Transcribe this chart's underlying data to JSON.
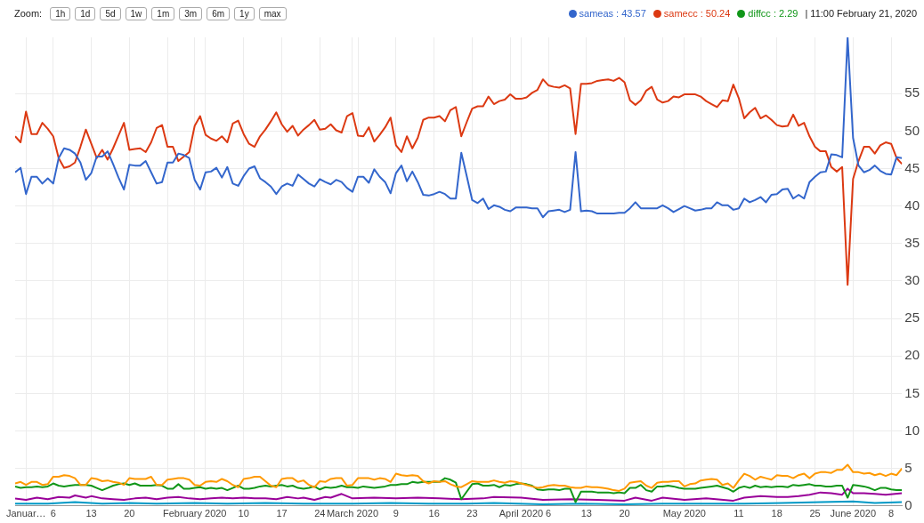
{
  "chart_data": {
    "type": "line",
    "annotations": [
      "Zoom:",
      "1h",
      "1d",
      "5d",
      "1w",
      "1m",
      "3m",
      "6m",
      "1y",
      "max",
      "| 11:00 February 21, 2020"
    ],
    "x": [
      "2019-12-30",
      "2019-12-31",
      "2020-01-01",
      "2020-01-02",
      "2020-01-03",
      "2020-01-04",
      "2020-01-05",
      "2020-01-06",
      "2020-01-07",
      "2020-01-08",
      "2020-01-09",
      "2020-01-10",
      "2020-01-11",
      "2020-01-12",
      "2020-01-13",
      "2020-01-14",
      "2020-01-15",
      "2020-01-16",
      "2020-01-17",
      "2020-01-18",
      "2020-01-19",
      "2020-01-20",
      "2020-01-21",
      "2020-01-22",
      "2020-01-23",
      "2020-01-24",
      "2020-01-25",
      "2020-01-26",
      "2020-01-27",
      "2020-01-28",
      "2020-01-29",
      "2020-01-30",
      "2020-01-31",
      "2020-02-01",
      "2020-02-02",
      "2020-02-03",
      "2020-02-04",
      "2020-02-05",
      "2020-02-06",
      "2020-02-07",
      "2020-02-08",
      "2020-02-09",
      "2020-02-10",
      "2020-02-11",
      "2020-02-12",
      "2020-02-13",
      "2020-02-14",
      "2020-02-15",
      "2020-02-16",
      "2020-02-17",
      "2020-02-18",
      "2020-02-19",
      "2020-02-20",
      "2020-02-21",
      "2020-02-22",
      "2020-02-23",
      "2020-02-24",
      "2020-02-25",
      "2020-02-26",
      "2020-02-27",
      "2020-02-28",
      "2020-02-29",
      "2020-03-01",
      "2020-03-02",
      "2020-03-03",
      "2020-03-04",
      "2020-03-05",
      "2020-03-06",
      "2020-03-07",
      "2020-03-08",
      "2020-03-09",
      "2020-03-10",
      "2020-03-11",
      "2020-03-12",
      "2020-03-13",
      "2020-03-14",
      "2020-03-15",
      "2020-03-16",
      "2020-03-17",
      "2020-03-18",
      "2020-03-19",
      "2020-03-20",
      "2020-03-21",
      "2020-03-22",
      "2020-03-23",
      "2020-03-24",
      "2020-03-25",
      "2020-03-26",
      "2020-03-27",
      "2020-03-28",
      "2020-03-29",
      "2020-03-30",
      "2020-03-31",
      "2020-04-01",
      "2020-04-02",
      "2020-04-03",
      "2020-04-04",
      "2020-04-05",
      "2020-04-06",
      "2020-04-07",
      "2020-04-08",
      "2020-04-09",
      "2020-04-10",
      "2020-04-11",
      "2020-04-12",
      "2020-04-13",
      "2020-04-14",
      "2020-04-15",
      "2020-04-16",
      "2020-04-17",
      "2020-04-18",
      "2020-04-19",
      "2020-04-20",
      "2020-04-21",
      "2020-04-22",
      "2020-04-23",
      "2020-04-24",
      "2020-04-25",
      "2020-04-26",
      "2020-04-27",
      "2020-04-28",
      "2020-04-29",
      "2020-04-30",
      "2020-05-01",
      "2020-05-02",
      "2020-05-03",
      "2020-05-04",
      "2020-05-05",
      "2020-05-06",
      "2020-05-07",
      "2020-05-08",
      "2020-05-09",
      "2020-05-10",
      "2020-05-11",
      "2020-05-12",
      "2020-05-13",
      "2020-05-14",
      "2020-05-15",
      "2020-05-16",
      "2020-05-17",
      "2020-05-18",
      "2020-05-19",
      "2020-05-20",
      "2020-05-21",
      "2020-05-22",
      "2020-05-23",
      "2020-05-24",
      "2020-05-25",
      "2020-05-26",
      "2020-05-27",
      "2020-05-28",
      "2020-05-29",
      "2020-05-30",
      "2020-05-31",
      "2020-06-01",
      "2020-06-02",
      "2020-06-03",
      "2020-06-04",
      "2020-06-05",
      "2020-06-06",
      "2020-06-07",
      "2020-06-08",
      "2020-06-09",
      "2020-06-10"
    ],
    "series": [
      {
        "name": "sameas : 43.57",
        "color": "#3366cc",
        "values": [
          44.5,
          45.1,
          41.6,
          43.9,
          43.9,
          43.0,
          43.7,
          43.0,
          46.4,
          47.7,
          47.5,
          47.0,
          45.8,
          43.5,
          44.4,
          46.6,
          46.6,
          47.3,
          45.6,
          43.8,
          42.2,
          45.5,
          45.4,
          45.4,
          46.0,
          44.5,
          43.0,
          43.2,
          45.8,
          45.8,
          47.0,
          46.8,
          46.4,
          43.5,
          42.2,
          44.5,
          44.6,
          45.1,
          43.8,
          45.2,
          43.0,
          42.7,
          44.0,
          45.0,
          45.3,
          43.7,
          43.2,
          42.6,
          41.6,
          42.6,
          43.0,
          42.7,
          44.2,
          43.6,
          43.0,
          42.6,
          43.6,
          43.2,
          42.9,
          43.5,
          43.2,
          42.4,
          41.9,
          43.9,
          43.9,
          43.1,
          44.9,
          43.9,
          43.2,
          41.7,
          44.4,
          45.4,
          43.3,
          44.6,
          43.2,
          41.5,
          41.4,
          41.6,
          41.9,
          41.6,
          41.0,
          41.0,
          47.1,
          44.0,
          40.8,
          40.4,
          41.0,
          39.6,
          40.1,
          39.9,
          39.5,
          39.3,
          39.8,
          39.8,
          39.8,
          39.7,
          39.7,
          38.5,
          39.3,
          39.4,
          39.5,
          39.2,
          39.5,
          47.2,
          39.3,
          39.4,
          39.3,
          39.0,
          39.0,
          39.0,
          39.0,
          39.1,
          39.1,
          39.7,
          40.5,
          39.7,
          39.7,
          39.7,
          39.7,
          40.1,
          39.7,
          39.2,
          39.6,
          40.0,
          39.7,
          39.4,
          39.5,
          39.7,
          39.7,
          40.5,
          40.1,
          40.1,
          39.5,
          39.7,
          41.0,
          40.5,
          40.8,
          41.2,
          40.5,
          41.5,
          41.6,
          42.2,
          42.3,
          41.0,
          41.5,
          41.0,
          43.2,
          43.9,
          44.5,
          44.6,
          46.9,
          46.8,
          46.5,
          62.5,
          49.1,
          45.4,
          44.5,
          44.8,
          45.4,
          44.7,
          44.3,
          44.2,
          46.5,
          46.4
        ]
      },
      {
        "name": "samecc : 50.24",
        "color": "#dc3912",
        "values": [
          49.3,
          48.5,
          52.6,
          49.6,
          49.6,
          51.1,
          50.3,
          49.3,
          46.4,
          45.1,
          45.3,
          45.8,
          47.9,
          50.2,
          48.3,
          46.4,
          47.5,
          46.2,
          47.7,
          49.4,
          51.1,
          47.5,
          47.6,
          47.7,
          47.2,
          48.5,
          50.4,
          50.8,
          47.9,
          47.9,
          46.0,
          46.6,
          47.2,
          50.7,
          52.0,
          49.5,
          49.0,
          48.7,
          49.3,
          48.5,
          51.0,
          51.4,
          49.6,
          48.3,
          47.9,
          49.3,
          50.2,
          51.3,
          52.5,
          50.9,
          49.9,
          50.7,
          49.4,
          50.2,
          50.8,
          51.5,
          50.2,
          50.3,
          50.9,
          50.1,
          49.8,
          52.0,
          52.4,
          49.4,
          49.3,
          50.5,
          48.6,
          49.5,
          50.5,
          51.8,
          48.1,
          47.2,
          49.3,
          47.7,
          49.1,
          51.5,
          51.8,
          51.8,
          52.0,
          51.3,
          52.8,
          53.2,
          49.3,
          51.2,
          53.0,
          53.3,
          53.3,
          54.6,
          53.6,
          54.0,
          54.2,
          54.9,
          54.3,
          54.3,
          54.5,
          55.1,
          55.5,
          56.9,
          56.1,
          55.9,
          55.8,
          56.1,
          55.7,
          49.6,
          56.3,
          56.3,
          56.4,
          56.7,
          56.8,
          56.9,
          56.7,
          57.1,
          56.5,
          54.1,
          53.5,
          54.1,
          55.4,
          55.9,
          54.2,
          53.8,
          54.0,
          54.6,
          54.5,
          54.9,
          54.9,
          54.9,
          54.6,
          54.0,
          53.6,
          53.2,
          54.1,
          54.0,
          56.2,
          54.4,
          51.7,
          52.5,
          53.1,
          51.7,
          52.1,
          51.5,
          50.8,
          50.6,
          50.7,
          52.2,
          50.7,
          51.1,
          49.3,
          47.9,
          47.3,
          47.3,
          45.2,
          44.6,
          45.2,
          29.5,
          43.6,
          46.0,
          47.9,
          47.9,
          47.0,
          48.1,
          48.5,
          48.3,
          46.4,
          45.6
        ]
      },
      {
        "color": "#ff9900",
        "values": [
          3.0,
          3.2,
          2.8,
          3.2,
          3.2,
          2.8,
          2.9,
          3.9,
          3.9,
          4.1,
          4.0,
          3.7,
          2.8,
          2.8,
          3.7,
          3.6,
          3.3,
          3.4,
          3.2,
          3.1,
          2.8,
          3.7,
          3.6,
          3.6,
          3.6,
          3.9,
          2.8,
          2.8,
          3.5,
          3.6,
          3.7,
          3.7,
          3.5,
          2.8,
          2.7,
          3.2,
          3.3,
          3.2,
          3.6,
          3.3,
          2.8,
          2.5,
          3.6,
          3.7,
          3.9,
          3.9,
          3.3,
          2.7,
          2.5,
          3.6,
          3.7,
          3.7,
          3.2,
          3.4,
          2.8,
          2.5,
          3.3,
          3.2,
          3.6,
          3.7,
          3.7,
          2.7,
          2.8,
          3.7,
          3.7,
          3.7,
          3.5,
          3.7,
          3.6,
          3.2,
          4.3,
          4.1,
          4.0,
          4.1,
          4.0,
          3.3,
          3.0,
          3.3,
          3.2,
          3.3,
          2.9,
          2.6,
          2.5,
          2.9,
          3.3,
          3.2,
          3.2,
          3.2,
          3.4,
          3.2,
          3.1,
          3.3,
          3.2,
          3.0,
          2.8,
          2.6,
          2.4,
          2.5,
          2.7,
          2.8,
          2.7,
          2.7,
          2.5,
          2.4,
          2.4,
          2.6,
          2.5,
          2.5,
          2.4,
          2.3,
          2.1,
          2.0,
          2.3,
          3.1,
          3.2,
          3.3,
          2.7,
          2.4,
          3.1,
          3.2,
          3.2,
          3.3,
          3.3,
          2.6,
          2.9,
          3.0,
          3.4,
          3.5,
          3.6,
          3.5,
          2.8,
          3.0,
          2.4,
          3.4,
          4.3,
          4.0,
          3.5,
          3.9,
          3.7,
          3.5,
          4.1,
          4.0,
          4.0,
          3.7,
          4.1,
          4.3,
          3.7,
          4.3,
          4.5,
          4.5,
          4.4,
          4.8,
          4.8,
          5.5,
          4.5,
          4.5,
          4.3,
          4.4,
          4.1,
          4.3,
          4.0,
          4.3,
          4.1,
          5.0
        ]
      },
      {
        "name": "diffcc : 2.29",
        "color": "#109618",
        "values": [
          2.6,
          2.4,
          2.5,
          2.5,
          2.6,
          2.5,
          2.6,
          3.0,
          2.7,
          2.6,
          2.7,
          2.8,
          2.8,
          2.8,
          2.7,
          2.4,
          2.1,
          2.4,
          2.7,
          2.9,
          3.0,
          2.8,
          3.0,
          2.7,
          2.7,
          2.7,
          2.8,
          2.7,
          2.3,
          2.3,
          2.9,
          2.3,
          2.3,
          2.4,
          2.5,
          2.3,
          2.4,
          2.3,
          2.4,
          2.1,
          2.4,
          2.7,
          2.3,
          2.3,
          2.4,
          2.6,
          2.7,
          2.6,
          2.7,
          2.8,
          2.6,
          2.7,
          2.4,
          2.3,
          2.4,
          2.6,
          2.2,
          2.5,
          2.4,
          2.5,
          2.7,
          2.5,
          2.5,
          2.4,
          2.6,
          2.5,
          2.4,
          2.5,
          2.6,
          2.8,
          2.8,
          2.9,
          2.9,
          3.2,
          3.1,
          3.2,
          3.2,
          3.2,
          3.2,
          3.7,
          3.5,
          3.1,
          0.9,
          1.9,
          2.9,
          3.0,
          2.7,
          2.7,
          2.8,
          2.5,
          2.8,
          2.7,
          2.9,
          3.0,
          2.9,
          2.7,
          2.2,
          2.1,
          2.2,
          2.2,
          2.1,
          2.3,
          2.3,
          0.5,
          1.9,
          1.9,
          1.9,
          1.8,
          1.8,
          1.8,
          1.7,
          1.8,
          1.7,
          2.4,
          2.4,
          2.8,
          2.1,
          1.9,
          2.6,
          2.6,
          2.7,
          2.6,
          2.4,
          2.3,
          2.3,
          2.3,
          2.4,
          2.5,
          2.6,
          2.7,
          2.5,
          2.3,
          1.9,
          2.4,
          2.6,
          2.4,
          2.7,
          2.5,
          2.6,
          2.5,
          2.6,
          2.6,
          2.5,
          2.8,
          2.7,
          2.8,
          2.9,
          2.7,
          2.7,
          2.6,
          2.6,
          2.7,
          2.7,
          1.1,
          2.8,
          2.7,
          2.6,
          2.4,
          2.1,
          2.4,
          2.4,
          2.2,
          2.1,
          2.1
        ]
      },
      {
        "color": "#990099",
        "x": [
          "2019-12-30",
          "2020-01-01",
          "2020-01-03",
          "2020-01-05",
          "2020-01-07",
          "2020-01-09",
          "2020-01-10",
          "2020-01-12",
          "2020-01-13",
          "2020-01-15",
          "2020-01-17",
          "2020-01-19",
          "2020-01-21",
          "2020-01-23",
          "2020-01-25",
          "2020-01-27",
          "2020-01-29",
          "2020-01-31",
          "2020-02-02",
          "2020-02-04",
          "2020-02-06",
          "2020-02-08",
          "2020-02-10",
          "2020-02-12",
          "2020-02-14",
          "2020-02-16",
          "2020-02-18",
          "2020-02-20",
          "2020-02-21",
          "2020-02-23",
          "2020-02-25",
          "2020-02-26",
          "2020-02-28",
          "2020-03-01",
          "2020-03-05",
          "2020-03-09",
          "2020-03-13",
          "2020-03-17",
          "2020-03-21",
          "2020-03-25",
          "2020-03-27",
          "2020-04-01",
          "2020-04-05",
          "2020-04-10",
          "2020-04-15",
          "2020-04-20",
          "2020-04-22",
          "2020-04-25",
          "2020-04-27",
          "2020-05-01",
          "2020-05-05",
          "2020-05-10",
          "2020-05-12",
          "2020-05-15",
          "2020-05-18",
          "2020-05-20",
          "2020-05-22",
          "2020-05-24",
          "2020-05-26",
          "2020-05-28",
          "2020-05-30",
          "2020-05-31",
          "2020-06-01",
          "2020-06-03",
          "2020-06-05",
          "2020-06-07",
          "2020-06-10"
        ],
        "values": [
          1.0,
          0.8,
          1.1,
          0.9,
          1.2,
          1.1,
          1.4,
          1.1,
          1.3,
          1.0,
          0.9,
          0.8,
          1.0,
          1.1,
          0.9,
          1.1,
          1.2,
          1.0,
          0.9,
          1.0,
          1.1,
          1.0,
          1.1,
          1.0,
          1.0,
          0.9,
          1.2,
          1.0,
          1.1,
          0.8,
          1.2,
          1.1,
          1.6,
          1.0,
          1.1,
          1.0,
          1.1,
          1.0,
          0.9,
          1.0,
          1.2,
          1.1,
          0.8,
          0.9,
          0.8,
          0.7,
          1.1,
          0.7,
          1.1,
          0.8,
          1.0,
          0.7,
          1.1,
          1.3,
          1.2,
          1.2,
          1.3,
          1.5,
          1.8,
          1.7,
          1.5,
          2.3,
          1.7,
          1.7,
          1.6,
          1.5,
          1.7
        ]
      },
      {
        "color": "#0099c6",
        "x": [
          "2019-12-30",
          "2020-01-05",
          "2020-01-10",
          "2020-01-15",
          "2020-01-20",
          "2020-01-25",
          "2020-02-01",
          "2020-02-07",
          "2020-02-14",
          "2020-02-21",
          "2020-03-01",
          "2020-03-08",
          "2020-03-15",
          "2020-03-22",
          "2020-03-27",
          "2020-04-05",
          "2020-04-12",
          "2020-04-20",
          "2020-04-27",
          "2020-05-05",
          "2020-05-12",
          "2020-05-19",
          "2020-05-26",
          "2020-06-01",
          "2020-06-05",
          "2020-06-10"
        ],
        "values": [
          0.3,
          0.3,
          0.5,
          0.3,
          0.4,
          0.3,
          0.4,
          0.3,
          0.4,
          0.3,
          0.3,
          0.4,
          0.3,
          0.3,
          0.4,
          0.2,
          0.3,
          0.2,
          0.3,
          0.3,
          0.3,
          0.4,
          0.5,
          0.6,
          0.4,
          0.5
        ]
      }
    ],
    "xlim": [
      "2019-12-30",
      "2020-06-10"
    ],
    "xticks": [
      {
        "value": "2020-01-01",
        "label": "Januar…"
      },
      {
        "value": "2020-01-06",
        "label": "6"
      },
      {
        "value": "2020-01-13",
        "label": "13"
      },
      {
        "value": "2020-01-20",
        "label": "20"
      },
      {
        "value": "2020-01-27",
        "label": null
      },
      {
        "value": "2020-02-01",
        "label": "February 2020"
      },
      {
        "value": "2020-02-03",
        "label": null
      },
      {
        "value": "2020-02-10",
        "label": "10"
      },
      {
        "value": "2020-02-17",
        "label": "17"
      },
      {
        "value": "2020-02-24",
        "label": "24"
      },
      {
        "value": "2020-03-01",
        "label": "March 2020"
      },
      {
        "value": "2020-03-02",
        "label": null
      },
      {
        "value": "2020-03-09",
        "label": "9"
      },
      {
        "value": "2020-03-16",
        "label": "16"
      },
      {
        "value": "2020-03-23",
        "label": "23"
      },
      {
        "value": "2020-03-30",
        "label": null
      },
      {
        "value": "2020-04-01",
        "label": "April 2020"
      },
      {
        "value": "2020-04-06",
        "label": "6"
      },
      {
        "value": "2020-04-13",
        "label": "13"
      },
      {
        "value": "2020-04-20",
        "label": "20"
      },
      {
        "value": "2020-04-27",
        "label": null
      },
      {
        "value": "2020-05-01",
        "label": "May 2020"
      },
      {
        "value": "2020-05-04",
        "label": null
      },
      {
        "value": "2020-05-11",
        "label": "11"
      },
      {
        "value": "2020-05-18",
        "label": "18"
      },
      {
        "value": "2020-05-25",
        "label": "25"
      },
      {
        "value": "2020-06-01",
        "label": "June 2020"
      },
      {
        "value": "2020-06-08",
        "label": "8"
      }
    ],
    "ylim": [
      0,
      62.5
    ],
    "yticks": [
      0,
      5,
      10,
      15,
      20,
      25,
      30,
      35,
      40,
      45,
      50,
      55
    ],
    "grid": true,
    "legend": "top right",
    "marker": "none",
    "line_style": "solid"
  }
}
